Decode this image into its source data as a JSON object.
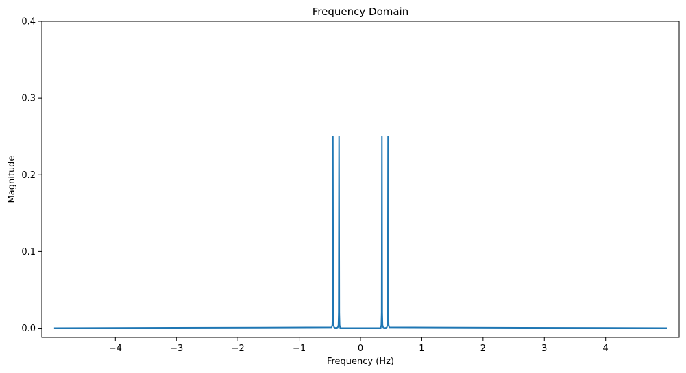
{
  "chart_data": {
    "type": "line",
    "title": "Frequency Domain",
    "xlabel": "Frequency (Hz)",
    "ylabel": "Magnitude",
    "xlim": [
      -5.2,
      5.2
    ],
    "ylim": [
      -0.012,
      0.4
    ],
    "xticks": [
      -4,
      -3,
      -2,
      -1,
      0,
      1,
      2,
      3,
      4
    ],
    "xtick_labels": [
      "−4",
      "−3",
      "−2",
      "−1",
      "0",
      "1",
      "2",
      "3",
      "4"
    ],
    "yticks": [
      0.0,
      0.1,
      0.2,
      0.3,
      0.4
    ],
    "ytick_labels": [
      "0.0",
      "0.1",
      "0.2",
      "0.3",
      "0.4"
    ],
    "grid": false,
    "legend": "none",
    "series": [
      {
        "color": "#1f77b4",
        "x": [
          -5.0,
          -0.47,
          -0.46,
          -0.455,
          -0.45,
          -0.445,
          -0.44,
          -0.43,
          -0.4,
          -0.37,
          -0.36,
          -0.355,
          -0.35,
          -0.345,
          -0.34,
          -0.33,
          0.33,
          0.34,
          0.345,
          0.35,
          0.355,
          0.36,
          0.37,
          0.4,
          0.43,
          0.44,
          0.445,
          0.45,
          0.455,
          0.46,
          0.47,
          5.0
        ],
        "y": [
          0.0,
          0.001,
          0.004,
          0.02,
          0.25,
          0.02,
          0.004,
          0.001,
          0.0,
          0.001,
          0.004,
          0.02,
          0.25,
          0.02,
          0.004,
          0.0,
          0.0,
          0.004,
          0.02,
          0.25,
          0.02,
          0.004,
          0.001,
          0.0,
          0.001,
          0.004,
          0.02,
          0.25,
          0.02,
          0.004,
          0.001,
          0.0
        ]
      }
    ]
  }
}
